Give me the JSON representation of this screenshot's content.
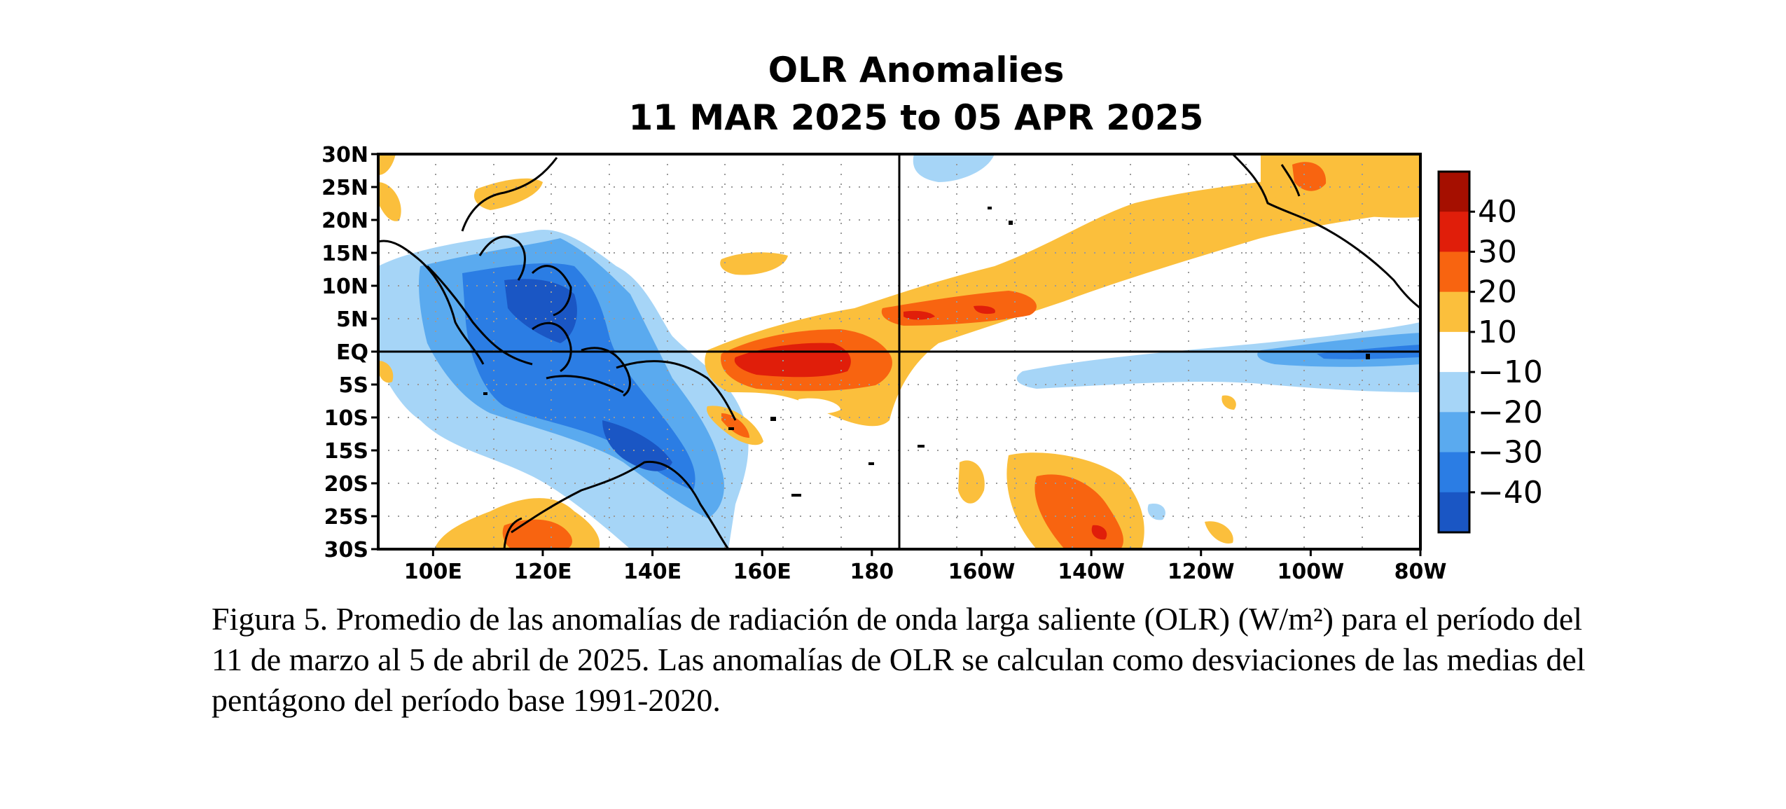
{
  "chart_data": {
    "type": "heatmap",
    "title": "OLR Anomalies",
    "subtitle": "11 MAR 2025 to 05 APR 2025",
    "x_ticks": [
      "100E",
      "120E",
      "140E",
      "160E",
      "180",
      "160W",
      "140W",
      "120W",
      "100W",
      "80W"
    ],
    "y_ticks": [
      "30N",
      "25N",
      "20N",
      "15N",
      "10N",
      "5N",
      "EQ",
      "5S",
      "10S",
      "15S",
      "20S",
      "25S",
      "30S"
    ],
    "colorbar": {
      "labels": [
        "40",
        "30",
        "20",
        "10",
        "−10",
        "−20",
        "−30",
        "−40"
      ],
      "colors": [
        "#a50f00",
        "#e01e0a",
        "#f86410",
        "#fbbf3c",
        "#ffffff",
        "#a6d5f7",
        "#5aaaef",
        "#2b7de4",
        "#1a56c4"
      ]
    },
    "reference_lines": {
      "equator": "EQ",
      "dateline": "180"
    }
  },
  "caption": "Figura 5. Promedio de las anomalías de radiación de onda larga saliente (OLR) (W/m²) para el período del 11 de marzo al 5 de abril de 2025. Las anomalías de OLR se calculan como desviaciones de las medias del pentágono del período base 1991-2020."
}
